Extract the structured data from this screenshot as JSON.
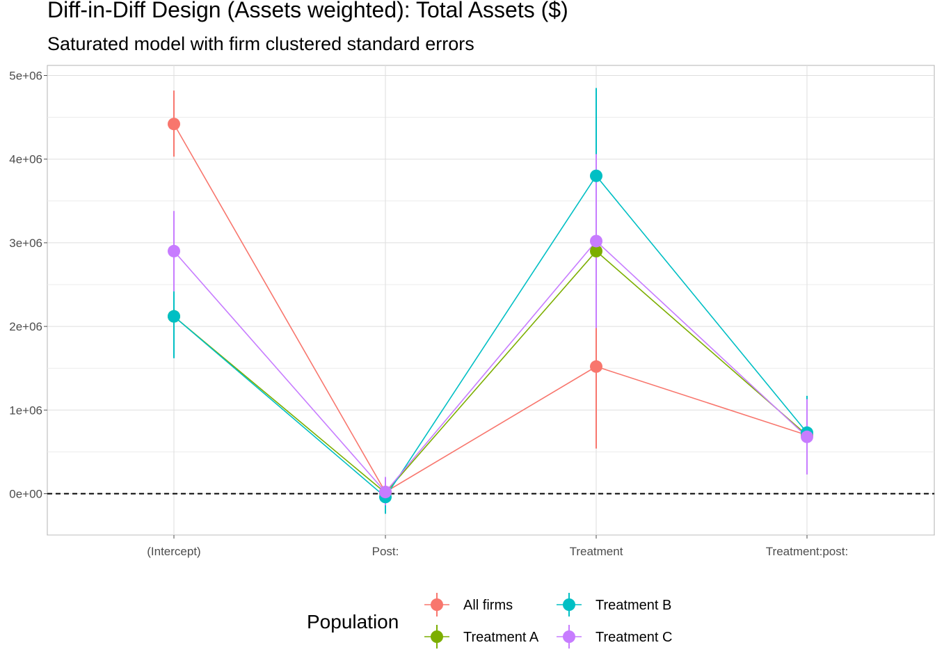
{
  "chart_data": {
    "type": "scatter",
    "title": "Diff-in-Diff Design (Assets weighted): Total Assets ($)",
    "subtitle": "Saturated model with firm clustered standard errors",
    "xlabel": "",
    "ylabel": "",
    "categories": [
      "(Intercept)",
      "Post:",
      "Treatment",
      "Treatment:post:"
    ],
    "ylim": [
      -500000,
      5100000
    ],
    "y_ticks": [
      0,
      1000000,
      2000000,
      3000000,
      4000000,
      5000000
    ],
    "y_tick_labels": [
      "0e+00",
      "1e+06",
      "2e+06",
      "3e+06",
      "4e+06",
      "5e+06"
    ],
    "reference_line": {
      "y": 0,
      "style": "dashed"
    },
    "grid": true,
    "legend_title": "Population",
    "legend_position": "bottom",
    "series": [
      {
        "name": "All firms",
        "color": "#F8766D",
        "values": [
          4420000,
          20000,
          1520000,
          700000
        ],
        "lower": [
          4030000,
          -60000,
          540000,
          620000
        ],
        "upper": [
          4820000,
          100000,
          2500000,
          780000
        ]
      },
      {
        "name": "Treatment A",
        "color": "#7CAE00",
        "values": [
          2120000,
          10000,
          2900000,
          700000
        ],
        "lower": [
          1850000,
          -80000,
          1980000,
          400000
        ],
        "upper": [
          2400000,
          100000,
          3900000,
          1000000
        ]
      },
      {
        "name": "Treatment B",
        "color": "#00BFC4",
        "values": [
          2120000,
          -40000,
          3800000,
          730000
        ],
        "lower": [
          1620000,
          -240000,
          2760000,
          290000
        ],
        "upper": [
          2420000,
          160000,
          4850000,
          1170000
        ]
      },
      {
        "name": "Treatment C",
        "color": "#C77CFF",
        "values": [
          2900000,
          20000,
          3020000,
          680000
        ],
        "lower": [
          2420000,
          -140000,
          1980000,
          230000
        ],
        "upper": [
          3380000,
          200000,
          4060000,
          1130000
        ]
      }
    ]
  }
}
